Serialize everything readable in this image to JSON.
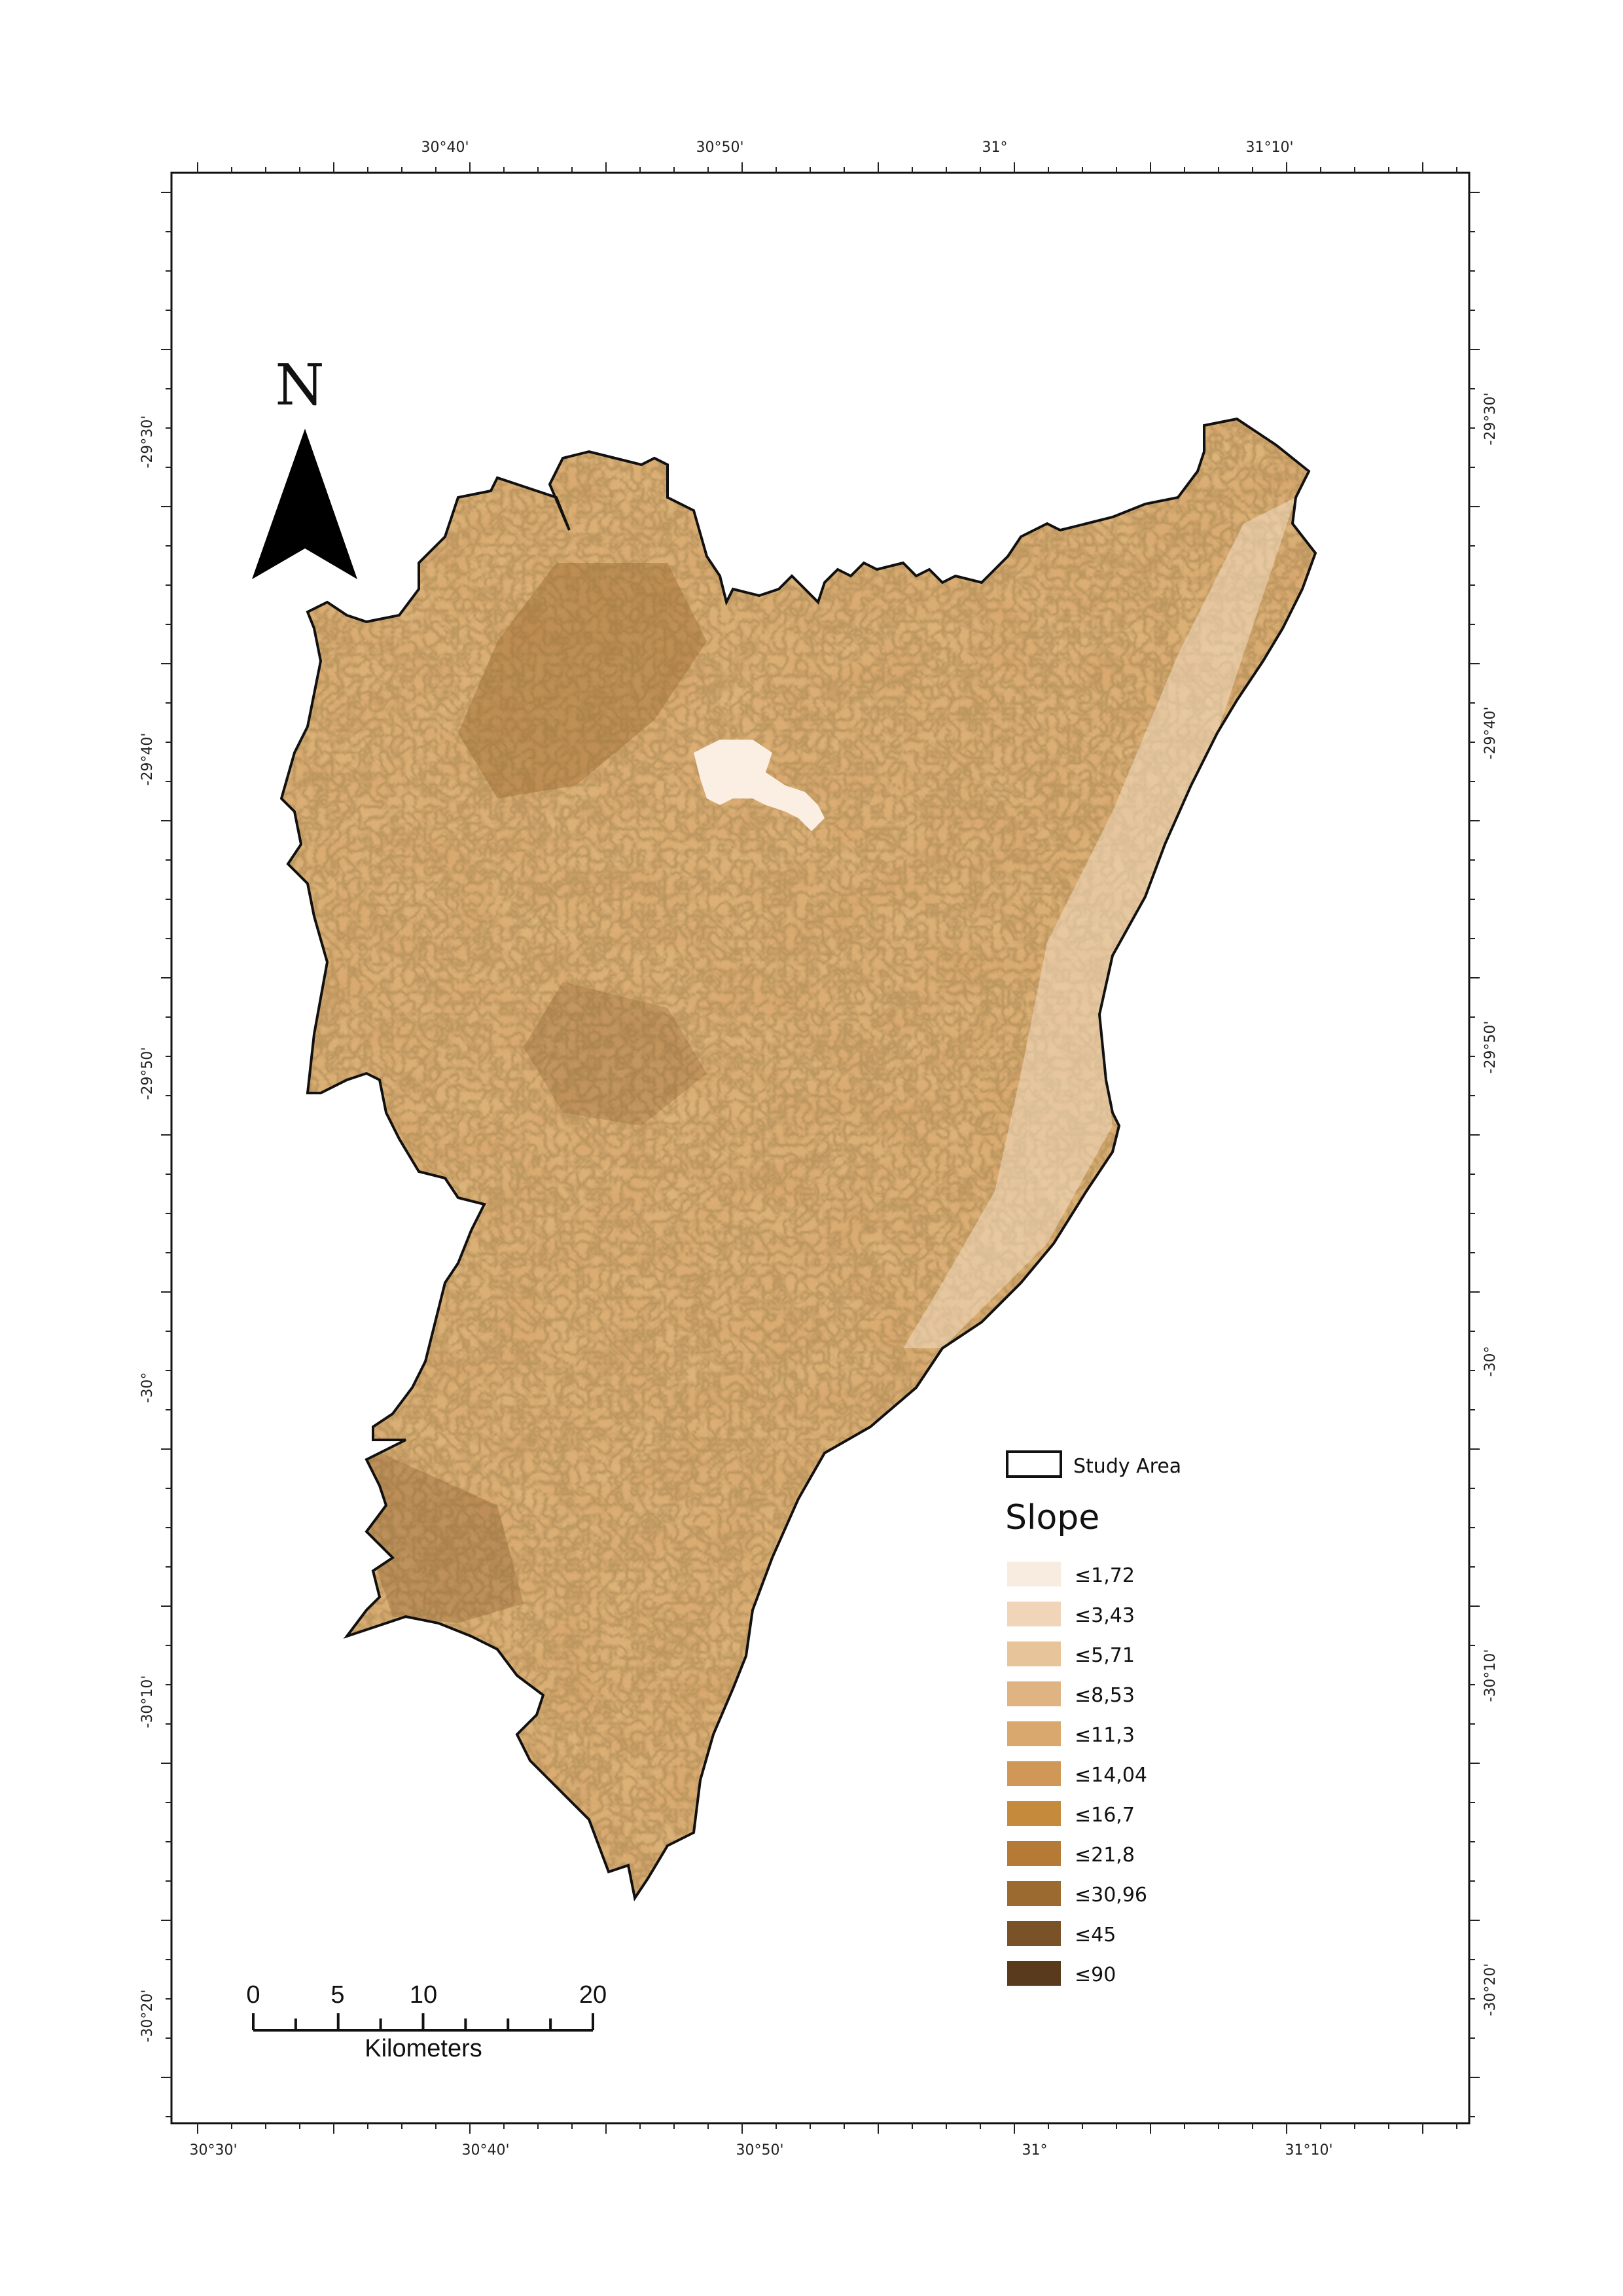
{
  "map": {
    "top_labels": [
      "30°40'",
      "30°50'",
      "31°",
      "31°10'"
    ],
    "bottom_labels": [
      "30°30'",
      "30°40'",
      "30°50'",
      "31°",
      "31°10'"
    ],
    "left_labels": [
      "-29°30'",
      "-29°40'",
      "-29°50'",
      "-30°",
      "-30°10'",
      "-30°20'"
    ],
    "right_labels": [
      "-29°30'",
      "-29°40'",
      "-29°50'",
      "-30°",
      "-30°10'",
      "-30°20'"
    ]
  },
  "north_arrow": {
    "label": "N",
    "icon": "north-arrow-icon"
  },
  "legend": {
    "study_area_label": "Study Area",
    "title": "Slope",
    "classes": [
      {
        "label": "≤1,72",
        "color": "#f8ebe0"
      },
      {
        "label": "≤3,43",
        "color": "#f0d5b8"
      },
      {
        "label": "≤5,71",
        "color": "#e8c49a"
      },
      {
        "label": "≤8,53",
        "color": "#dfb482"
      },
      {
        "label": "≤11,3",
        "color": "#d9a86f"
      },
      {
        "label": "≤14,04",
        "color": "#cf9856"
      },
      {
        "label": "≤16,7",
        "color": "#c68a3d"
      },
      {
        "label": "≤21,8",
        "color": "#b57a35"
      },
      {
        "label": "≤30,96",
        "color": "#9b6a30"
      },
      {
        "label": "≤45",
        "color": "#7a5228"
      },
      {
        "label": "≤90",
        "color": "#5a3a1c"
      }
    ]
  },
  "scale_bar": {
    "labels": [
      "0",
      "5",
      "10",
      "20"
    ],
    "unit": "Kilometers"
  }
}
